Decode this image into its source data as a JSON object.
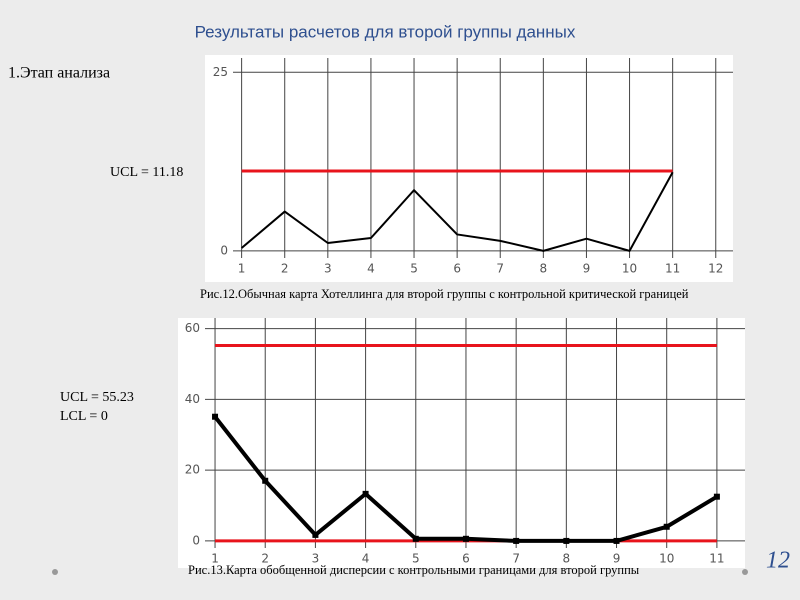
{
  "title": "Результаты расчетов для второй группы данных",
  "section": "1.Этап анализа",
  "page_number": "12",
  "chart_data": [
    {
      "type": "line",
      "x": [
        1,
        2,
        3,
        4,
        5,
        6,
        7,
        8,
        9,
        10,
        11,
        12
      ],
      "series": [
        {
          "color": "#000000",
          "values": [
            0.4,
            5.5,
            1.1,
            1.8,
            8.5,
            2.3,
            1.4,
            0,
            1.7,
            0,
            11.0,
            null
          ]
        }
      ],
      "limits": [
        {
          "value": 11.18,
          "color": "#e8141c"
        }
      ],
      "annotations": [
        "UCL = 11.18"
      ],
      "caption": "Рис.12.Обычная карта Хотеллинга для второй группы с контрольной критической границей",
      "xlim": [
        0.8,
        12.4
      ],
      "ylim": [
        -1,
        27
      ],
      "xticks": [
        1,
        2,
        3,
        4,
        5,
        6,
        7,
        8,
        9,
        10,
        11,
        12
      ],
      "yticks": [
        0,
        25
      ],
      "grid": true,
      "markers": false
    },
    {
      "type": "line",
      "x": [
        1,
        2,
        3,
        4,
        5,
        6,
        7,
        8,
        9,
        10,
        11
      ],
      "series": [
        {
          "color": "#000000",
          "values": [
            35.1,
            17.0,
            1.7,
            13.3,
            0.6,
            0.6,
            0,
            0,
            0,
            4.0,
            12.5
          ]
        }
      ],
      "limits": [
        {
          "value": 55.23,
          "color": "#e8141c"
        },
        {
          "value": 0,
          "color": "#e8141c"
        }
      ],
      "annotations": [
        "UCL = 55.23",
        "LCL = 0"
      ],
      "caption": "Рис.13.Карта обобщенной дисперсии с контрольными границами для второй группы",
      "xlim": [
        0.8,
        11.56
      ],
      "ylim": [
        -2,
        63
      ],
      "xticks": [
        1,
        2,
        3,
        4,
        5,
        6,
        7,
        8,
        9,
        10,
        11
      ],
      "yticks": [
        0,
        20,
        40,
        60
      ],
      "grid": true,
      "markers": true
    }
  ]
}
